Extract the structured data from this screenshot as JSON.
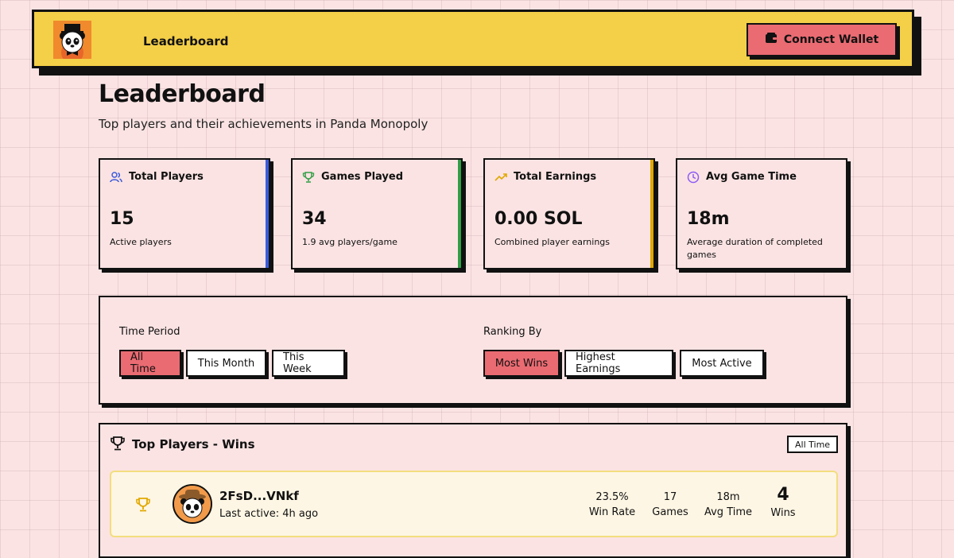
{
  "nav": {
    "title": "Leaderboard",
    "connect_label": "Connect Wallet"
  },
  "page": {
    "title": "Leaderboard",
    "subtitle": "Top players and their achievements in Panda Monopoly"
  },
  "stats": [
    {
      "label": "Total Players",
      "value": "15",
      "desc": "Active players",
      "icon": "users-icon",
      "color": "#3b5bdb"
    },
    {
      "label": "Games Played",
      "value": "34",
      "desc": "1.9 avg players/game",
      "icon": "trophy-icon",
      "color": "#2f9e44"
    },
    {
      "label": "Total Earnings",
      "value": "0.00 SOL",
      "desc": "Combined player earnings",
      "icon": "trending-up-icon",
      "color": "#e0a800"
    },
    {
      "label": "Avg Game Time",
      "value": "18m",
      "desc": "Average duration of completed games",
      "icon": "clock-icon",
      "color": "#8b5cf6"
    }
  ],
  "filters": {
    "time_label": "Time Period",
    "time_options": [
      "All Time",
      "This Month",
      "This Week"
    ],
    "time_selected": "All Time",
    "rank_label": "Ranking By",
    "rank_options": [
      "Most Wins",
      "Highest Earnings",
      "Most Active"
    ],
    "rank_selected": "Most Wins"
  },
  "leaderboard": {
    "title": "Top Players - Wins",
    "badge": "All Time",
    "players": [
      {
        "name": "2FsD...VNkf",
        "last_active": "Last active: 4h ago",
        "win_rate": "23.5%",
        "win_rate_label": "Win Rate",
        "games": "17",
        "games_label": "Games",
        "avg_time": "18m",
        "avg_time_label": "Avg Time",
        "wins": "4",
        "wins_label": "Wins"
      }
    ]
  }
}
